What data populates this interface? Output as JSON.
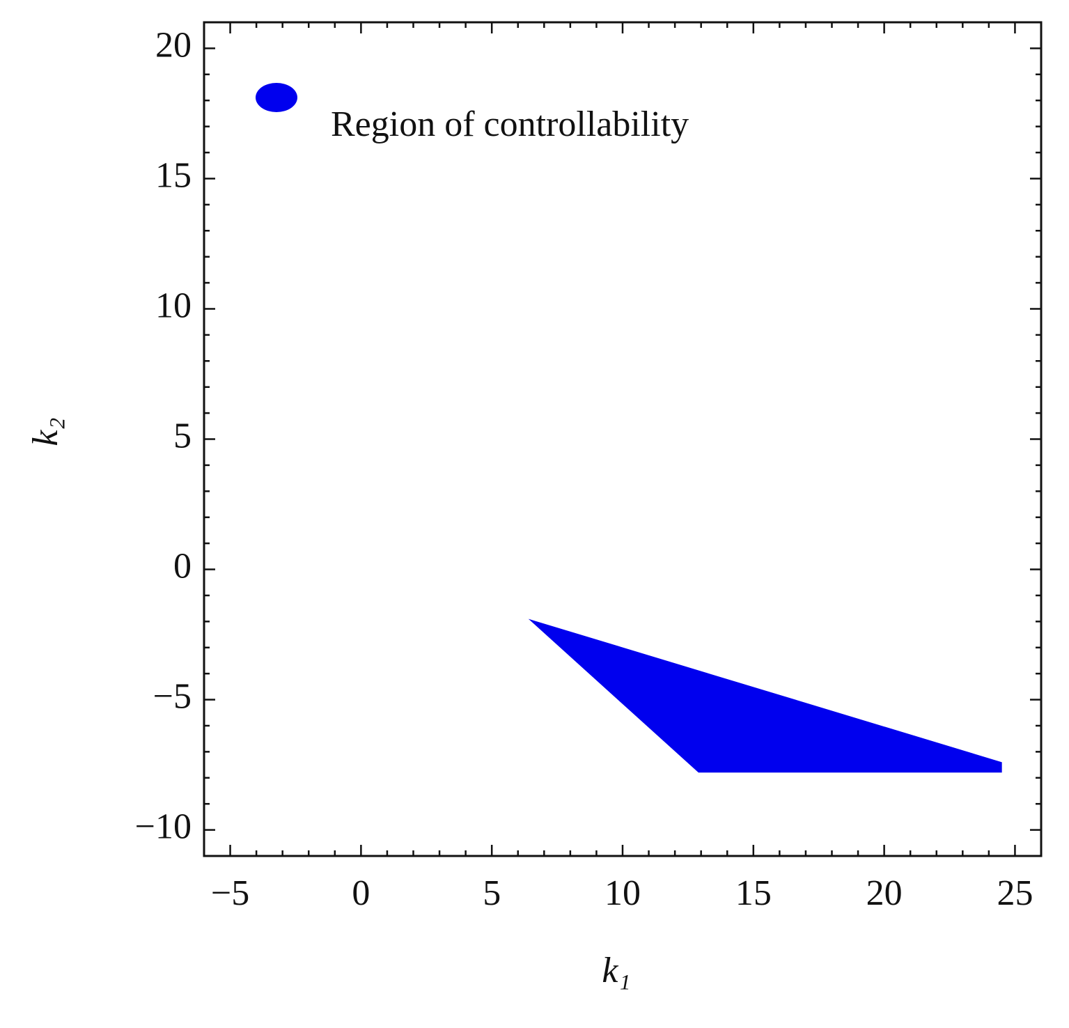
{
  "chart_data": {
    "type": "region",
    "x_label": "k₁",
    "y_label": "k₂",
    "series": [
      {
        "name": "Region of controllability",
        "color": "#0000ee",
        "x": [
          6.4,
          12.9,
          24.5,
          24.5
        ],
        "y": [
          -1.9,
          -7.8,
          -7.8,
          -7.4
        ]
      }
    ],
    "xlim": [
      -6,
      26
    ],
    "ylim": [
      -11,
      21
    ],
    "xticks": [
      {
        "value": -5,
        "label": "−5"
      },
      0,
      5,
      10,
      15,
      20,
      25
    ],
    "yticks": [
      {
        "value": -10,
        "label": "−10"
      },
      {
        "value": -5,
        "label": "−5"
      },
      0,
      5,
      10,
      15,
      20
    ],
    "legend": "top-left"
  }
}
